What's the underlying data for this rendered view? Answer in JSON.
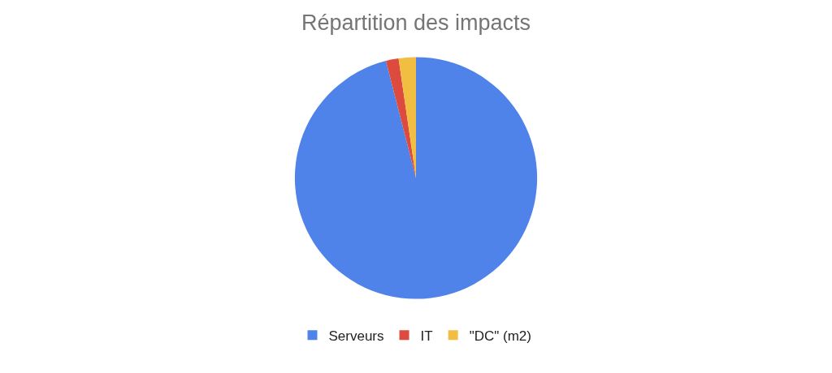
{
  "chart_data": {
    "type": "pie",
    "title": "Répartition des impacts",
    "categories": [
      "Serveurs",
      "IT",
      "\"DC\" (m2)"
    ],
    "values": [
      96,
      1.7,
      2.3
    ],
    "colors": [
      "#5083ea",
      "#dc4b3e",
      "#f2be42"
    ],
    "legend": "bottom"
  }
}
